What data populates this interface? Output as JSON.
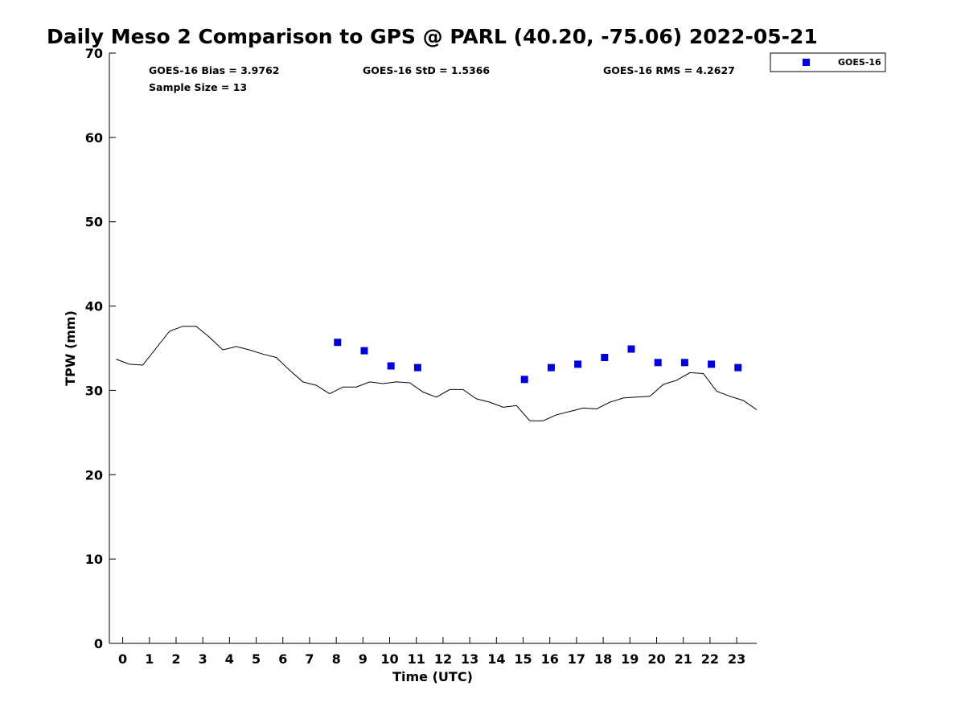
{
  "chart_data": {
    "type": "scatter",
    "title": "Daily Meso 2 Comparison to GPS @ PARL (40.20, -75.06) 2022-05-21",
    "xlabel": "Time (UTC)",
    "ylabel": "TPW (mm)",
    "xlim": [
      -0.5,
      23.75
    ],
    "ylim": [
      0,
      70
    ],
    "x_ticks": [
      0,
      1,
      2,
      3,
      4,
      5,
      6,
      7,
      8,
      9,
      10,
      11,
      12,
      13,
      14,
      15,
      16,
      17,
      18,
      19,
      20,
      21,
      22,
      23
    ],
    "y_ticks": [
      0,
      10,
      20,
      30,
      40,
      50,
      60,
      70
    ],
    "grid": false,
    "legend_position": "top-right",
    "stats": {
      "bias": "GOES-16 Bias = 3.9762",
      "std": "GOES-16 StD = 1.5366",
      "rms": "GOES-16 RMS = 4.2627",
      "sample": "Sample Size = 13"
    },
    "series": [
      {
        "name": "GOES-16",
        "kind": "scatter",
        "marker": "square",
        "color": "#0000dd",
        "points": [
          [
            8.05,
            35.7
          ],
          [
            9.05,
            34.7
          ],
          [
            10.05,
            32.9
          ],
          [
            11.05,
            32.7
          ],
          [
            15.05,
            31.3
          ],
          [
            16.05,
            32.7
          ],
          [
            17.05,
            33.1
          ],
          [
            18.05,
            33.9
          ],
          [
            19.05,
            34.9
          ],
          [
            20.05,
            33.3
          ],
          [
            21.05,
            33.3
          ],
          [
            22.05,
            33.1
          ],
          [
            23.05,
            32.7
          ]
        ]
      },
      {
        "kind": "line",
        "color": "#000000",
        "points": [
          [
            -0.25,
            33.7
          ],
          [
            0.25,
            33.1
          ],
          [
            0.75,
            33.0
          ],
          [
            1.25,
            35.0
          ],
          [
            1.75,
            37.0
          ],
          [
            2.25,
            37.6
          ],
          [
            2.75,
            37.6
          ],
          [
            3.25,
            36.3
          ],
          [
            3.75,
            34.8
          ],
          [
            4.25,
            35.2
          ],
          [
            4.75,
            34.8
          ],
          [
            5.25,
            34.3
          ],
          [
            5.75,
            33.9
          ],
          [
            6.25,
            32.4
          ],
          [
            6.75,
            31.0
          ],
          [
            7.25,
            30.6
          ],
          [
            7.75,
            29.6
          ],
          [
            8.25,
            30.4
          ],
          [
            8.75,
            30.4
          ],
          [
            9.25,
            31.0
          ],
          [
            9.75,
            30.8
          ],
          [
            10.25,
            31.0
          ],
          [
            10.75,
            30.9
          ],
          [
            11.25,
            29.8
          ],
          [
            11.75,
            29.2
          ],
          [
            12.25,
            30.1
          ],
          [
            12.75,
            30.1
          ],
          [
            13.25,
            29.0
          ],
          [
            13.75,
            28.6
          ],
          [
            14.25,
            28.0
          ],
          [
            14.75,
            28.2
          ],
          [
            15.25,
            26.4
          ],
          [
            15.75,
            26.4
          ],
          [
            16.25,
            27.1
          ],
          [
            16.75,
            27.5
          ],
          [
            17.25,
            27.9
          ],
          [
            17.75,
            27.8
          ],
          [
            18.25,
            28.6
          ],
          [
            18.75,
            29.1
          ],
          [
            19.25,
            29.2
          ],
          [
            19.75,
            29.3
          ],
          [
            20.25,
            30.7
          ],
          [
            20.75,
            31.2
          ],
          [
            21.25,
            32.1
          ],
          [
            21.75,
            32.0
          ],
          [
            22.25,
            29.9
          ],
          [
            22.75,
            29.3
          ],
          [
            23.25,
            28.8
          ],
          [
            23.75,
            27.7
          ]
        ]
      }
    ]
  }
}
